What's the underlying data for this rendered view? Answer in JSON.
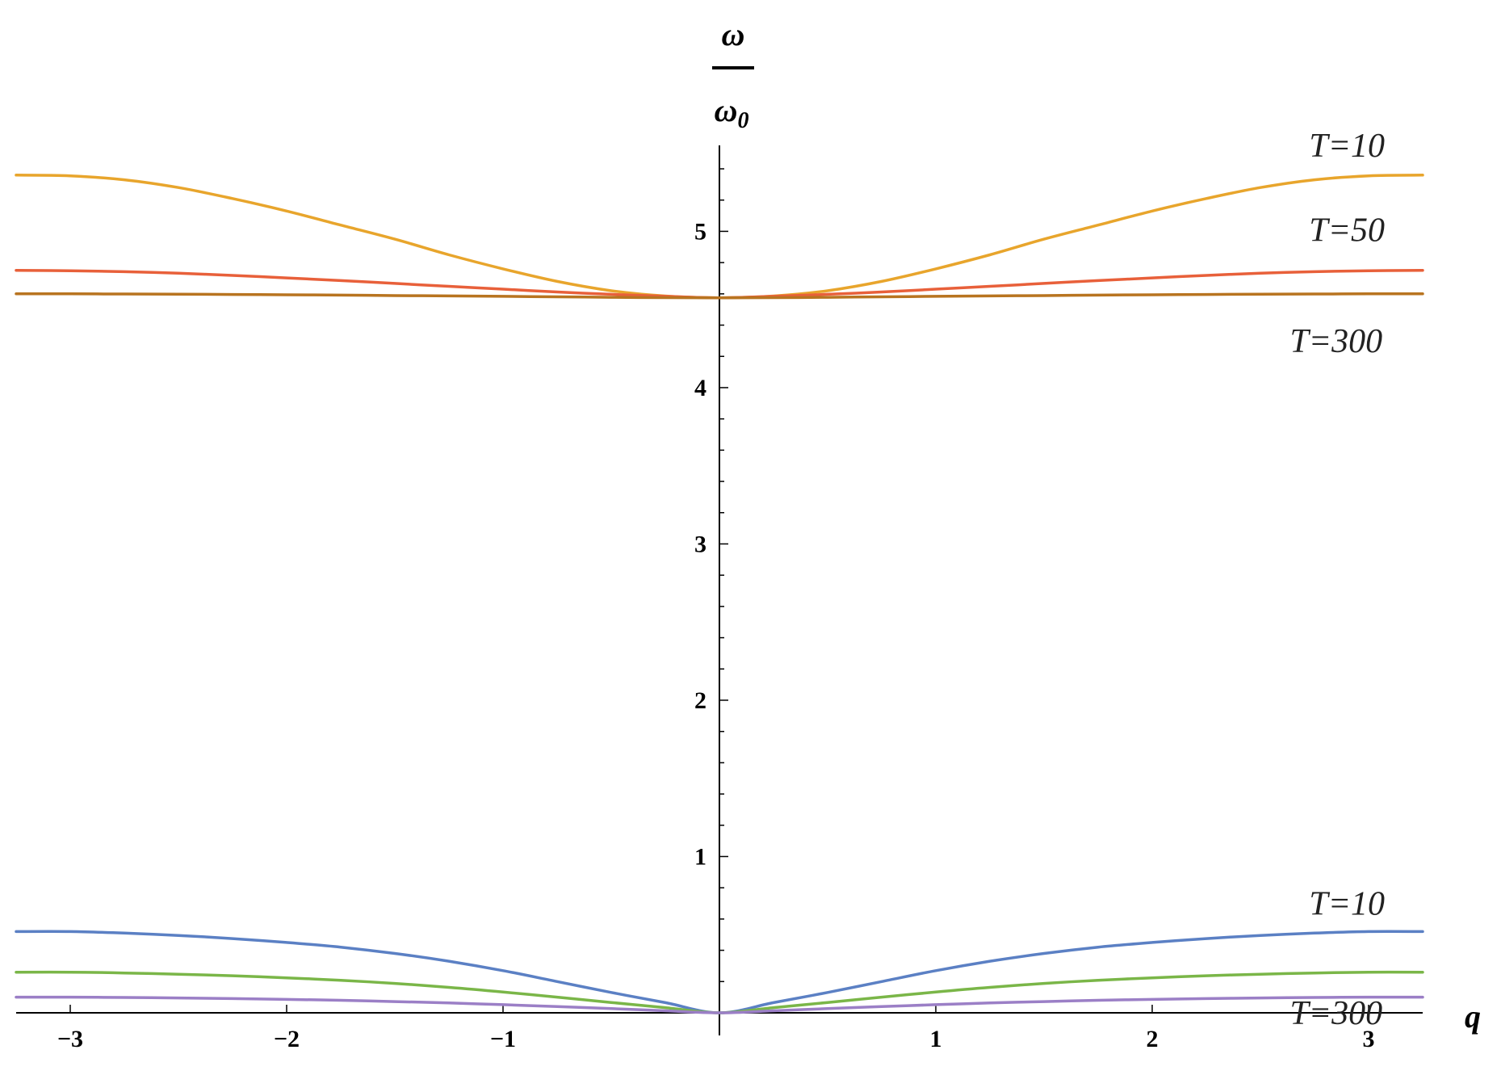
{
  "chart_data": {
    "type": "line",
    "title": "",
    "xlabel": "q",
    "ylabel": {
      "numerator": "ω",
      "denominator": "ω",
      "denominator_subscript": "0"
    },
    "xlim": [
      -3.25,
      3.25
    ],
    "ylim": [
      0,
      5.55
    ],
    "x_ticks": [
      -3,
      -2,
      -1,
      1,
      2,
      3
    ],
    "x_tick_labels": [
      "−3",
      "−2",
      "−1",
      "1",
      "2",
      "3"
    ],
    "y_ticks": [
      1,
      2,
      3,
      4,
      5
    ],
    "y_tick_labels": [
      "1",
      "2",
      "3",
      "4",
      "5"
    ],
    "grid": false,
    "legend": "none",
    "x": [
      -3.25,
      -3.0,
      -2.75,
      -2.5,
      -2.25,
      -2.0,
      -1.75,
      -1.5,
      -1.25,
      -1.0,
      -0.75,
      -0.5,
      -0.25,
      0.0,
      0.25,
      0.5,
      0.75,
      1.0,
      1.25,
      1.5,
      1.75,
      2.0,
      2.25,
      2.5,
      2.75,
      3.0,
      3.25
    ],
    "series": [
      {
        "branch": "optical",
        "color": "#e8a52c",
        "values": [
          5.36,
          5.355,
          5.33,
          5.28,
          5.21,
          5.13,
          5.04,
          4.95,
          4.85,
          4.76,
          4.68,
          4.62,
          4.586,
          4.575,
          4.586,
          4.62,
          4.68,
          4.76,
          4.85,
          4.95,
          5.04,
          5.13,
          5.21,
          5.28,
          5.33,
          5.355,
          5.36
        ]
      },
      {
        "branch": "optical",
        "color": "#e8603a",
        "values": [
          4.75,
          4.748,
          4.742,
          4.732,
          4.718,
          4.702,
          4.685,
          4.667,
          4.648,
          4.63,
          4.612,
          4.597,
          4.584,
          4.575,
          4.584,
          4.597,
          4.612,
          4.63,
          4.648,
          4.667,
          4.685,
          4.702,
          4.718,
          4.732,
          4.742,
          4.748,
          4.75
        ]
      },
      {
        "branch": "optical",
        "color": "#b87420",
        "values": [
          4.6,
          4.6,
          4.599,
          4.598,
          4.596,
          4.594,
          4.592,
          4.589,
          4.587,
          4.584,
          4.581,
          4.578,
          4.576,
          4.575,
          4.576,
          4.578,
          4.581,
          4.584,
          4.587,
          4.589,
          4.592,
          4.594,
          4.596,
          4.598,
          4.599,
          4.6,
          4.6
        ]
      },
      {
        "branch": "acoustic",
        "color": "#5b80c4",
        "values": [
          0.52,
          0.52,
          0.51,
          0.495,
          0.475,
          0.45,
          0.42,
          0.38,
          0.33,
          0.27,
          0.2,
          0.13,
          0.065,
          0.0,
          0.065,
          0.13,
          0.2,
          0.27,
          0.33,
          0.38,
          0.42,
          0.45,
          0.475,
          0.495,
          0.51,
          0.52,
          0.52
        ]
      },
      {
        "branch": "acoustic",
        "color": "#7ab648",
        "values": [
          0.26,
          0.26,
          0.255,
          0.247,
          0.237,
          0.224,
          0.208,
          0.188,
          0.163,
          0.133,
          0.1,
          0.066,
          0.033,
          0.0,
          0.033,
          0.066,
          0.1,
          0.133,
          0.163,
          0.188,
          0.208,
          0.224,
          0.237,
          0.247,
          0.255,
          0.26,
          0.26
        ]
      },
      {
        "branch": "acoustic",
        "color": "#9b7fc6",
        "values": [
          0.1,
          0.1,
          0.098,
          0.095,
          0.091,
          0.086,
          0.08,
          0.072,
          0.063,
          0.052,
          0.04,
          0.027,
          0.013,
          0.0,
          0.013,
          0.027,
          0.04,
          0.052,
          0.063,
          0.072,
          0.08,
          0.086,
          0.091,
          0.095,
          0.098,
          0.1,
          0.1
        ]
      }
    ],
    "annotations": [
      {
        "text": "T=10",
        "x": 2.9,
        "y": 5.55
      },
      {
        "text": "T=50",
        "x": 2.9,
        "y": 5.01
      },
      {
        "text": "T=300",
        "x": 2.85,
        "y": 4.3
      },
      {
        "text": "T=10",
        "x": 2.9,
        "y": 0.7
      },
      {
        "text": "T=300",
        "x": 2.85,
        "y": 0.0
      }
    ]
  }
}
